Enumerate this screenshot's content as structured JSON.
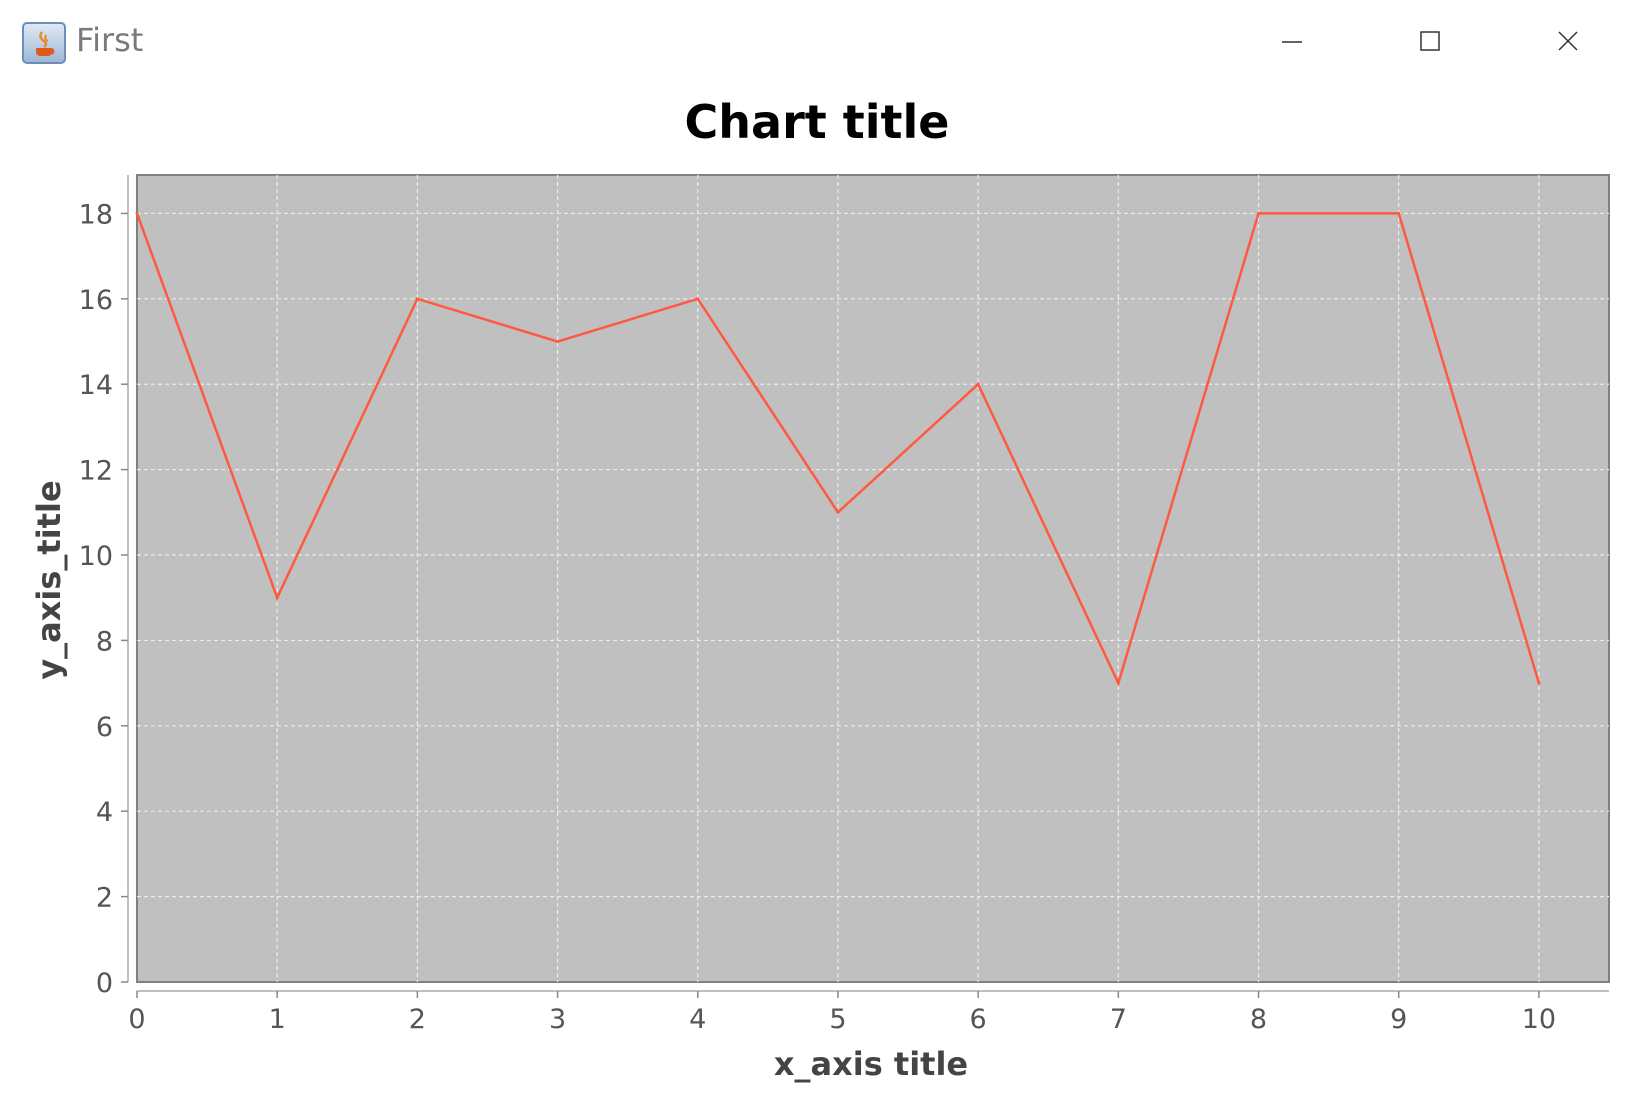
{
  "window": {
    "title": "First",
    "icons": {
      "app": "java-app-icon",
      "minimize": "minimize-icon",
      "maximize": "maximize-icon",
      "close": "close-icon"
    }
  },
  "chart_data": {
    "type": "line",
    "title": "Chart title",
    "xlabel": "x_axis title",
    "ylabel": "y_axis_title",
    "xlim": [
      0,
      10.5
    ],
    "ylim": [
      0,
      18.9
    ],
    "xticks": [
      0,
      1,
      2,
      3,
      4,
      5,
      6,
      7,
      8,
      9,
      10
    ],
    "yticks": [
      0,
      2,
      4,
      6,
      8,
      10,
      12,
      14,
      16,
      18
    ],
    "grid": true,
    "legend": "none",
    "series": [
      {
        "x": [
          0,
          1,
          2,
          3,
          4,
          5,
          6,
          7,
          8,
          9,
          10
        ],
        "y": [
          18,
          9,
          16,
          15,
          16,
          11,
          14,
          7,
          18,
          18,
          7
        ],
        "color": "#ff5a40"
      }
    ],
    "plot_background": "#c0c0c0",
    "grid_color": "#ececec"
  }
}
